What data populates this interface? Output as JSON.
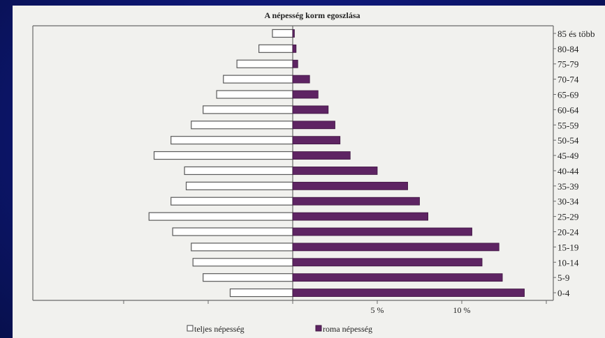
{
  "chart_data": {
    "type": "bar",
    "title": "A népesség korm egoszlása",
    "categories": [
      "0-4",
      "5-9",
      "10-14",
      "15-19",
      "20-24",
      "25-29",
      "30-34",
      "35-39",
      "40-44",
      "45-49",
      "50-54",
      "55-59",
      "60-64",
      "65-69",
      "70-74",
      "75-79",
      "80-84",
      "85 és több"
    ],
    "series": [
      {
        "name": "teljes népesség",
        "side": "left",
        "values": [
          3.7,
          5.3,
          5.9,
          6.0,
          7.1,
          8.5,
          7.2,
          6.3,
          6.4,
          8.2,
          7.2,
          6.0,
          5.3,
          4.5,
          4.1,
          3.3,
          2.0,
          1.2
        ]
      },
      {
        "name": "roma népesség",
        "side": "right",
        "values": [
          13.7,
          12.4,
          11.2,
          12.2,
          10.6,
          8.0,
          7.5,
          6.8,
          5.0,
          3.4,
          2.8,
          2.5,
          2.1,
          1.5,
          1.0,
          0.3,
          0.2,
          0.1
        ]
      }
    ],
    "x_tick_labels": [
      "5 %",
      "10 %"
    ],
    "xlim": [
      -10,
      15
    ],
    "legend_position": "bottom",
    "grid": false,
    "colors": {
      "teljes népesség": "#ffffff",
      "roma népesség": "#5e2463"
    }
  }
}
